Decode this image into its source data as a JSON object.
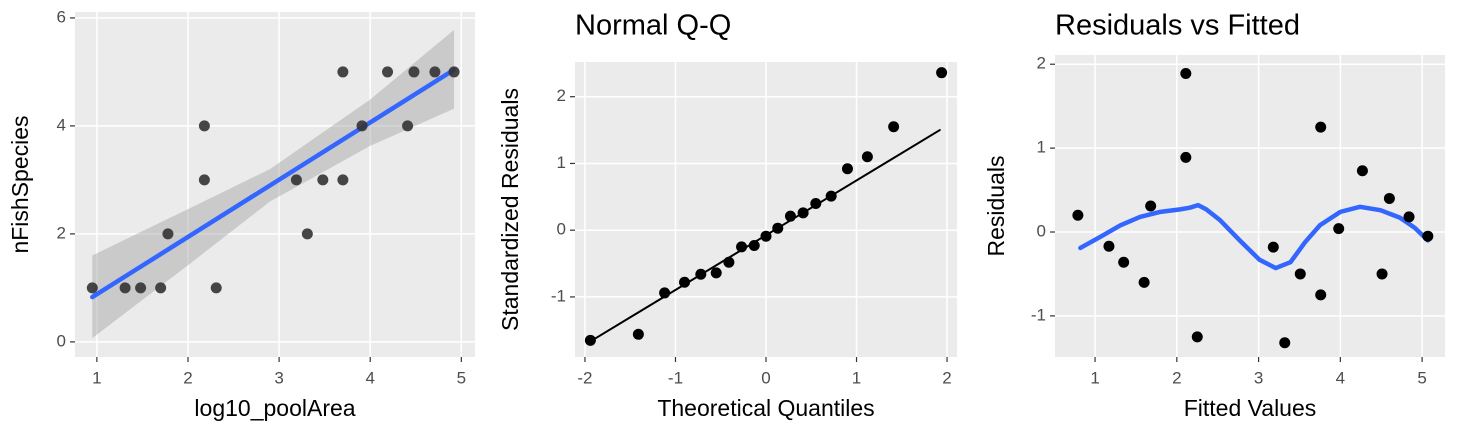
{
  "chart_data": [
    {
      "type": "scatter",
      "x_label": "log10_poolArea",
      "y_label": "nFishSpecies",
      "xlim": [
        0.76,
        5.15
      ],
      "ylim": [
        -0.28,
        6.11
      ],
      "xticks": [
        1,
        2,
        3,
        4,
        5
      ],
      "yticks": [
        0,
        2,
        4,
        6
      ],
      "grid": true,
      "band": {
        "x": [
          0.95,
          2,
          2.9,
          4,
          4.92
        ],
        "lower": [
          0.07,
          1.42,
          2.6,
          3.63,
          4.32
        ],
        "upper": [
          1.6,
          2.46,
          3.2,
          4.49,
          5.78
        ],
        "color": "#999999"
      },
      "line": {
        "x": [
          0.95,
          4.92
        ],
        "values": [
          0.83,
          5.04
        ],
        "color": "#3366FF"
      },
      "points": {
        "x": [
          0.95,
          1.31,
          1.48,
          1.7,
          1.78,
          2.18,
          2.18,
          2.31,
          3.19,
          3.31,
          3.48,
          3.7,
          3.7,
          3.91,
          4.19,
          4.41,
          4.48,
          4.71,
          4.92
        ],
        "values": [
          1,
          1,
          1,
          1,
          2,
          4,
          3,
          1,
          3,
          2,
          3,
          5,
          3,
          4,
          5,
          4,
          5,
          5,
          5
        ],
        "color": "#333333"
      }
    },
    {
      "type": "scatter",
      "title": "Normal Q-Q",
      "x_label": "Theoretical Quantiles",
      "y_label": "Standardized Residuals",
      "xlim": [
        -2.11,
        2.11
      ],
      "ylim": [
        -1.9,
        2.52
      ],
      "xticks": [
        -2,
        -1,
        0,
        1,
        2
      ],
      "yticks": [
        -1,
        0,
        1,
        2
      ],
      "grid": true,
      "line": {
        "x": [
          -1.92,
          1.92
        ],
        "values": [
          -1.65,
          1.5
        ],
        "color": "#000000"
      },
      "points": {
        "x": [
          -1.94,
          -1.41,
          -1.12,
          -0.9,
          -0.72,
          -0.55,
          -0.41,
          -0.27,
          -0.13,
          0,
          0.13,
          0.27,
          0.41,
          0.55,
          0.72,
          0.9,
          1.12,
          1.41,
          1.94
        ],
        "values": [
          -1.65,
          -1.56,
          -0.94,
          -0.78,
          -0.66,
          -0.64,
          -0.48,
          -0.25,
          -0.23,
          -0.09,
          0.03,
          0.21,
          0.26,
          0.4,
          0.51,
          0.92,
          1.1,
          1.55,
          2.36
        ],
        "color": "#000000"
      }
    },
    {
      "type": "scatter",
      "title": "Residuals vs Fitted",
      "x_label": "Fitted Values",
      "y_label": "Residuals",
      "xlim": [
        0.51,
        5.28
      ],
      "ylim": [
        -1.49,
        2.11
      ],
      "xticks": [
        1,
        2,
        3,
        4,
        5
      ],
      "yticks": [
        -1,
        0,
        1,
        2
      ],
      "grid": true,
      "line": {
        "x": [
          0.82,
          1.06,
          1.31,
          1.55,
          1.8,
          2.04,
          2.16,
          2.26,
          2.36,
          2.53,
          2.77,
          3.01,
          3.21,
          3.39,
          3.57,
          3.75,
          4.0,
          4.24,
          4.49,
          4.73,
          4.91,
          5.07
        ],
        "values": [
          -0.19,
          -0.06,
          0.08,
          0.18,
          0.24,
          0.27,
          0.29,
          0.32,
          0.27,
          0.14,
          -0.1,
          -0.33,
          -0.43,
          -0.36,
          -0.12,
          0.08,
          0.24,
          0.3,
          0.26,
          0.17,
          0.05,
          -0.1
        ],
        "color": "#3366FF"
      },
      "points": {
        "x": [
          0.79,
          1.17,
          1.35,
          1.6,
          1.68,
          2.11,
          2.11,
          2.25,
          3.18,
          3.32,
          3.51,
          3.76,
          3.76,
          3.98,
          4.27,
          4.51,
          4.6,
          4.84,
          5.07
        ],
        "values": [
          0.2,
          -0.17,
          -0.36,
          -0.6,
          0.31,
          1.89,
          0.89,
          -1.25,
          -0.18,
          -1.32,
          -0.5,
          1.25,
          -0.75,
          0.04,
          0.73,
          -0.5,
          0.4,
          0.18,
          -0.05
        ],
        "color": "#000000"
      }
    }
  ]
}
